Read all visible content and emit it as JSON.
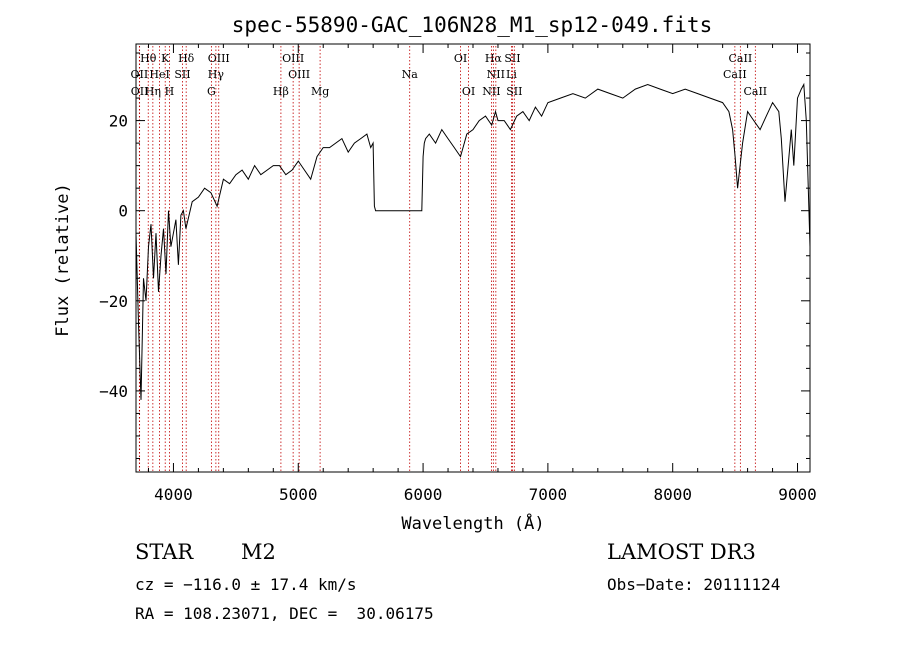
{
  "chart_data": {
    "type": "line",
    "title": "spec-55890-GAC_106N28_M1_sp12-049.fits",
    "xlabel": "Wavelength (Å)",
    "ylabel": "Flux (relative)",
    "xlim": [
      3700,
      9100
    ],
    "ylim": [
      -58,
      37
    ],
    "xticks": [
      4000,
      5000,
      6000,
      7000,
      8000,
      9000
    ],
    "yticks": [
      -40,
      -20,
      0,
      20
    ],
    "grid": false,
    "series": [
      {
        "color": "#000000",
        "x": [
          3700,
          3720,
          3740,
          3760,
          3780,
          3800,
          3820,
          3840,
          3860,
          3880,
          3900,
          3920,
          3940,
          3960,
          3980,
          4000,
          4020,
          4040,
          4060,
          4080,
          4100,
          4150,
          4200,
          4250,
          4300,
          4350,
          4400,
          4450,
          4500,
          4550,
          4600,
          4650,
          4700,
          4750,
          4800,
          4850,
          4900,
          4950,
          5000,
          5050,
          5100,
          5150,
          5200,
          5250,
          5300,
          5350,
          5400,
          5450,
          5500,
          5550,
          5580,
          5600,
          5610,
          5620,
          5700,
          5800,
          5900,
          5990,
          6000,
          6010,
          6020,
          6050,
          6100,
          6150,
          6200,
          6250,
          6300,
          6330,
          6350,
          6400,
          6450,
          6500,
          6550,
          6580,
          6600,
          6650,
          6700,
          6750,
          6800,
          6850,
          6900,
          6950,
          7000,
          7100,
          7200,
          7300,
          7400,
          7500,
          7600,
          7700,
          7800,
          7900,
          8000,
          8100,
          8200,
          8300,
          8400,
          8450,
          8480,
          8500,
          8520,
          8540,
          8560,
          8600,
          8650,
          8700,
          8750,
          8800,
          8850,
          8870,
          8900,
          8950,
          8970,
          9000,
          9030,
          9050,
          9070,
          9100
        ],
        "y": [
          -5,
          -25,
          -42,
          -15,
          -20,
          -8,
          -3,
          -15,
          -5,
          -18,
          -10,
          -4,
          -14,
          0,
          -8,
          -5,
          -2,
          -12,
          -1,
          0,
          -4,
          2,
          3,
          5,
          4,
          1,
          7,
          6,
          8,
          9,
          7,
          10,
          8,
          9,
          10,
          10,
          8,
          9,
          11,
          9,
          7,
          12,
          14,
          14,
          15,
          16,
          13,
          15,
          16,
          17,
          14,
          15,
          1,
          0,
          0,
          0,
          0,
          0,
          12,
          15,
          16,
          17,
          15,
          18,
          16,
          14,
          12,
          15,
          17,
          18,
          20,
          21,
          19,
          22,
          20,
          20,
          18,
          21,
          22,
          20,
          23,
          21,
          24,
          25,
          26,
          25,
          27,
          26,
          25,
          27,
          28,
          27,
          26,
          27,
          26,
          25,
          24,
          22,
          18,
          12,
          5,
          10,
          15,
          22,
          20,
          18,
          21,
          24,
          22,
          16,
          2,
          18,
          10,
          25,
          27,
          28,
          20,
          -8
        ]
      }
    ],
    "lines": [
      {
        "label": "Hθ",
        "x": 3798,
        "row": 1
      },
      {
        "label": "K",
        "x": 3934,
        "row": 1
      },
      {
        "label": "Hδ",
        "x": 4102,
        "row": 1
      },
      {
        "label": "OIII",
        "x": 4363,
        "row": 1
      },
      {
        "label": "OIII",
        "x": 4959,
        "row": 1
      },
      {
        "label": "OI",
        "x": 6300,
        "row": 1
      },
      {
        "label": "Hα",
        "x": 6563,
        "row": 1
      },
      {
        "label": "SII",
        "x": 6716,
        "row": 1
      },
      {
        "label": "CaII",
        "x": 8542,
        "row": 1
      },
      {
        "label": "OII",
        "x": 3727,
        "row": 2
      },
      {
        "label": "HeI",
        "x": 3889,
        "row": 2
      },
      {
        "label": "SII",
        "x": 4072,
        "row": 2
      },
      {
        "label": "Hγ",
        "x": 4340,
        "row": 2
      },
      {
        "label": "OIII",
        "x": 5007,
        "row": 2
      },
      {
        "label": "Na",
        "x": 5893,
        "row": 2
      },
      {
        "label": "NII",
        "x": 6583,
        "row": 2
      },
      {
        "label": "Li",
        "x": 6708,
        "row": 2
      },
      {
        "label": "CaII",
        "x": 8498,
        "row": 2
      },
      {
        "label": "OII",
        "x": 3729,
        "row": 3
      },
      {
        "label": "Hη",
        "x": 3835,
        "row": 3
      },
      {
        "label": "H",
        "x": 3968,
        "row": 3
      },
      {
        "label": "G",
        "x": 4304,
        "row": 3
      },
      {
        "label": "Hβ",
        "x": 4861,
        "row": 3
      },
      {
        "label": "Mg",
        "x": 5175,
        "row": 3
      },
      {
        "label": "OI",
        "x": 6364,
        "row": 3
      },
      {
        "label": "NII",
        "x": 6548,
        "row": 3
      },
      {
        "label": "SII",
        "x": 6731,
        "row": 3
      },
      {
        "label": "CaII",
        "x": 8662,
        "row": 3
      }
    ]
  },
  "info": {
    "class": "STAR",
    "subclass": "M2",
    "survey": "LAMOST DR3",
    "cz": "cz = −116.0 ± 17.4 km/s",
    "obs_date": "Obs−Date: 20111124",
    "coords": "RA = 108.23071, DEC =  30.06175"
  }
}
